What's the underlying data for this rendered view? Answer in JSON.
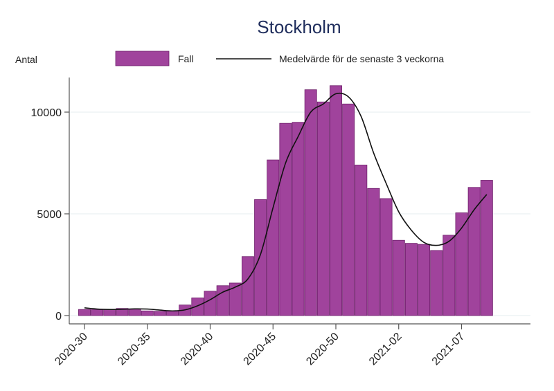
{
  "chart_data": {
    "type": "bar",
    "title": "Stockholm",
    "ylabel": "Antal",
    "xlabel": "",
    "ylim": [
      0,
      11700
    ],
    "yticks": [
      0,
      5000,
      10000
    ],
    "ytick_labels": [
      "0",
      "5000",
      "10000"
    ],
    "grid": true,
    "legend_placement": "top",
    "categories": [
      "2020-30",
      "2020-31",
      "2020-32",
      "2020-33",
      "2020-34",
      "2020-35",
      "2020-36",
      "2020-37",
      "2020-38",
      "2020-39",
      "2020-40",
      "2020-41",
      "2020-42",
      "2020-43",
      "2020-44",
      "2020-45",
      "2020-46",
      "2020-47",
      "2020-48",
      "2020-49",
      "2020-50",
      "2020-51",
      "2020-52",
      "2020-53",
      "2021-01",
      "2021-02",
      "2021-03",
      "2021-04",
      "2021-05",
      "2021-06",
      "2021-07",
      "2021-08",
      "2021-09"
    ],
    "xtick_labels": [
      {
        "index": 0,
        "label": "2020-30"
      },
      {
        "index": 5,
        "label": "2020-35"
      },
      {
        "index": 10,
        "label": "2020-40"
      },
      {
        "index": 15,
        "label": "2020-45"
      },
      {
        "index": 20,
        "label": "2020-50"
      },
      {
        "index": 25,
        "label": "2021-02"
      },
      {
        "index": 30,
        "label": "2021-07"
      }
    ],
    "series": [
      {
        "name": "Fall",
        "type": "bar",
        "color": "#a0439c",
        "values": [
          300,
          290,
          300,
          350,
          320,
          230,
          210,
          220,
          520,
          870,
          1200,
          1470,
          1600,
          2900,
          5700,
          7650,
          9450,
          9500,
          11100,
          10500,
          11300,
          10400,
          7400,
          6250,
          5750,
          3700,
          3550,
          3500,
          3200,
          3950,
          5050,
          6300,
          6650
        ]
      },
      {
        "name": "Medelvärde för de senaste 3 veckorna",
        "type": "line",
        "color": "#111111",
        "values": [
          380,
          320,
          300,
          310,
          330,
          320,
          270,
          230,
          280,
          480,
          780,
          1150,
          1400,
          1800,
          3000,
          5300,
          7500,
          8800,
          10000,
          10400,
          10900,
          10750,
          9800,
          8000,
          6500,
          5100,
          4200,
          3600,
          3450,
          3650,
          4300,
          5200,
          5950
        ]
      }
    ]
  }
}
